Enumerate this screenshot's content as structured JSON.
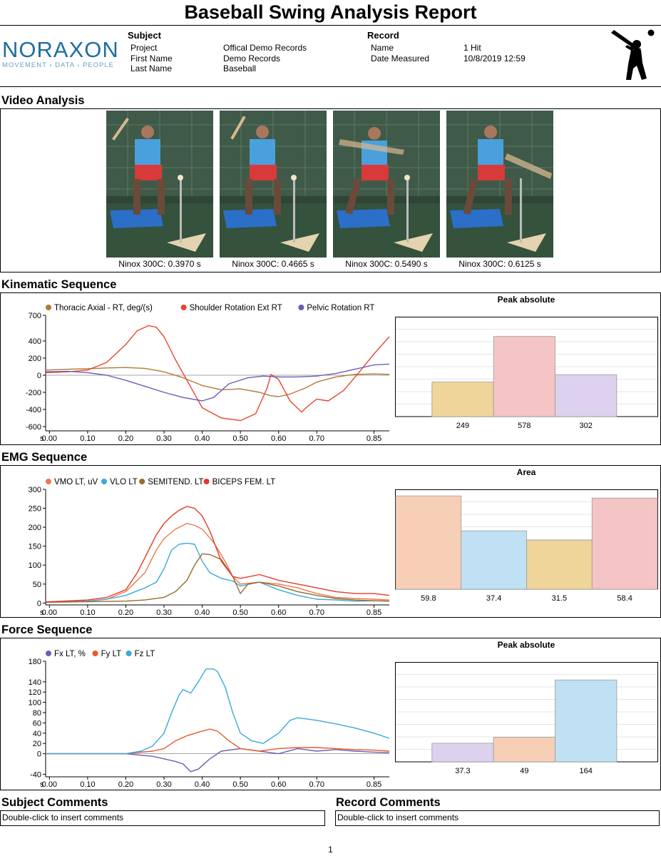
{
  "report_title": "Baseball Swing Analysis Report",
  "logo": {
    "name": "NORAXON",
    "tagline": "MOVEMENT › DATA › PEOPLE"
  },
  "subject": {
    "heading": "Subject",
    "rows": [
      {
        "label": "Project",
        "value": "Offical Demo Records"
      },
      {
        "label": "First Name",
        "value": "Demo Records"
      },
      {
        "label": "Last Name",
        "value": "Baseball"
      }
    ]
  },
  "record": {
    "heading": "Record",
    "rows": [
      {
        "label": "Name",
        "value": "1 Hit"
      },
      {
        "label": "Date Measured",
        "value": "10/8/2019 12:59"
      }
    ]
  },
  "header_icon": "baseball-batter-icon",
  "video": {
    "title": "Video Analysis",
    "frames": [
      {
        "caption": "Ninox 300C: 0.3970 s"
      },
      {
        "caption": "Ninox 300C: 0.4665 s"
      },
      {
        "caption": "Ninox 300C: 0.5490 s"
      },
      {
        "caption": "Ninox 300C: 0.6125 s"
      }
    ]
  },
  "sections": {
    "kinematic": "Kinematic Sequence",
    "emg": "EMG Sequence",
    "force": "Force Sequence"
  },
  "comments": {
    "subject_title": "Subject Comments",
    "subject_text": "Double-click to insert comments",
    "record_title": "Record Comments",
    "record_text": "Double-click to insert comments"
  },
  "page_number": "1",
  "chart_data": [
    {
      "id": "kinematic-line",
      "type": "line",
      "legend": [
        "Thoracic Axial - RT, deg/(s)",
        "Shoulder Rotation Ext RT",
        "Pelvic Rotation RT"
      ],
      "x_unit": "s",
      "xticks": [
        "0.00",
        "0.10",
        "0.20",
        "0.30",
        "0.40",
        "0.50",
        "0.60",
        "0.70",
        "0.85"
      ],
      "xtick_values": [
        0.0,
        0.1,
        0.2,
        0.3,
        0.4,
        0.5,
        0.6,
        0.7,
        0.85
      ],
      "xlim": [
        -0.01,
        0.89
      ],
      "yticks": [
        700,
        400,
        200,
        0,
        -200,
        -400,
        -600
      ],
      "ylim": [
        -650,
        700
      ],
      "zero_line": true,
      "series": [
        {
          "name": "Thoracic Axial - RT, deg/(s)",
          "color": "#b07a35",
          "x": [
            -0.01,
            0.05,
            0.1,
            0.15,
            0.2,
            0.25,
            0.3,
            0.35,
            0.4,
            0.45,
            0.5,
            0.55,
            0.58,
            0.6,
            0.63,
            0.67,
            0.7,
            0.75,
            0.8,
            0.85,
            0.89
          ],
          "y": [
            60,
            70,
            75,
            85,
            90,
            80,
            40,
            -30,
            -120,
            -170,
            -160,
            -200,
            -240,
            -250,
            -220,
            -150,
            -80,
            -20,
            10,
            15,
            10
          ]
        },
        {
          "name": "Shoulder Rotation Ext RT",
          "color": "#e8452c",
          "x": [
            -0.01,
            0.05,
            0.1,
            0.15,
            0.2,
            0.23,
            0.26,
            0.28,
            0.3,
            0.33,
            0.36,
            0.4,
            0.45,
            0.5,
            0.54,
            0.57,
            0.58,
            0.6,
            0.63,
            0.66,
            0.68,
            0.7,
            0.73,
            0.77,
            0.81,
            0.85,
            0.89
          ],
          "y": [
            30,
            40,
            60,
            150,
            360,
            520,
            580,
            560,
            450,
            180,
            -60,
            -380,
            -500,
            -530,
            -450,
            -150,
            10,
            -50,
            -300,
            -430,
            -350,
            -280,
            -300,
            -180,
            30,
            250,
            450
          ]
        },
        {
          "name": "Pelvic Rotation RT",
          "color": "#6c5db8",
          "x": [
            -0.01,
            0.05,
            0.1,
            0.15,
            0.2,
            0.25,
            0.3,
            0.35,
            0.4,
            0.43,
            0.47,
            0.52,
            0.56,
            0.6,
            0.65,
            0.7,
            0.75,
            0.8,
            0.85,
            0.89
          ],
          "y": [
            40,
            45,
            30,
            0,
            -60,
            -130,
            -200,
            -260,
            -300,
            -260,
            -100,
            -30,
            -10,
            -20,
            -20,
            -10,
            20,
            70,
            120,
            130
          ]
        }
      ]
    },
    {
      "id": "kinematic-peak",
      "type": "bar",
      "title": "Peak absolute",
      "categories": [
        "Thoracic Axial - RT, deg/(s)",
        "Shoulder Rotation Ext RT",
        "Pelvic Rotation RT"
      ],
      "labels": [
        "249",
        "578",
        "302"
      ],
      "values": [
        249,
        578,
        302
      ],
      "ylim": [
        0,
        720
      ],
      "colors": [
        "#f0d59a",
        "#f5c4c4",
        "#ddd1ee"
      ],
      "offset_bars": 1
    },
    {
      "id": "emg-line",
      "type": "line",
      "legend": [
        "VMO LT, uV",
        "VLO LT",
        "SEMITEND. LT",
        "BICEPS FEM. LT"
      ],
      "x_unit": "s",
      "xticks": [
        "0.00",
        "0.10",
        "0.20",
        "0.30",
        "0.40",
        "0.50",
        "0.60",
        "0.70",
        "0.85"
      ],
      "xtick_values": [
        0.0,
        0.1,
        0.2,
        0.3,
        0.4,
        0.5,
        0.6,
        0.7,
        0.85
      ],
      "xlim": [
        -0.01,
        0.89
      ],
      "yticks": [
        300,
        250,
        200,
        150,
        100,
        50,
        0
      ],
      "ylim": [
        -5,
        300
      ],
      "zero_line": false,
      "series": [
        {
          "name": "VMO LT, uV",
          "color": "#e87b4c",
          "x": [
            -0.01,
            0.1,
            0.15,
            0.2,
            0.25,
            0.28,
            0.3,
            0.33,
            0.36,
            0.38,
            0.4,
            0.43,
            0.46,
            0.48,
            0.5,
            0.55,
            0.6,
            0.65,
            0.7,
            0.75,
            0.8,
            0.85,
            0.89
          ],
          "y": [
            2,
            5,
            10,
            30,
            80,
            140,
            170,
            195,
            210,
            205,
            195,
            160,
            110,
            70,
            50,
            55,
            50,
            40,
            25,
            15,
            12,
            10,
            8
          ]
        },
        {
          "name": "VLO LT",
          "color": "#3aa8d8",
          "x": [
            -0.01,
            0.1,
            0.15,
            0.2,
            0.25,
            0.28,
            0.3,
            0.32,
            0.34,
            0.36,
            0.38,
            0.4,
            0.42,
            0.45,
            0.48,
            0.5,
            0.55,
            0.6,
            0.65,
            0.7,
            0.75,
            0.8,
            0.85,
            0.89
          ],
          "y": [
            2,
            5,
            10,
            20,
            40,
            55,
            90,
            140,
            155,
            158,
            155,
            110,
            80,
            65,
            58,
            45,
            55,
            35,
            20,
            10,
            8,
            5,
            6,
            5
          ]
        },
        {
          "name": "SEMITEND. LT",
          "color": "#9b6a2c",
          "x": [
            -0.01,
            0.2,
            0.25,
            0.3,
            0.33,
            0.36,
            0.38,
            0.4,
            0.42,
            0.45,
            0.48,
            0.5,
            0.52,
            0.55,
            0.6,
            0.65,
            0.7,
            0.75,
            0.8,
            0.85,
            0.89
          ],
          "y": [
            2,
            5,
            8,
            15,
            30,
            60,
            100,
            130,
            128,
            115,
            70,
            25,
            50,
            55,
            45,
            30,
            20,
            12,
            8,
            6,
            5
          ]
        },
        {
          "name": "BICEPS FEM. LT",
          "color": "#e23a2a",
          "x": [
            -0.01,
            0.1,
            0.15,
            0.2,
            0.23,
            0.26,
            0.28,
            0.3,
            0.32,
            0.34,
            0.36,
            0.38,
            0.4,
            0.42,
            0.45,
            0.48,
            0.5,
            0.55,
            0.6,
            0.65,
            0.7,
            0.75,
            0.8,
            0.85,
            0.89
          ],
          "y": [
            3,
            8,
            15,
            35,
            80,
            140,
            180,
            210,
            230,
            245,
            255,
            250,
            230,
            190,
            110,
            70,
            65,
            75,
            60,
            50,
            40,
            30,
            25,
            25,
            20
          ]
        }
      ]
    },
    {
      "id": "emg-area",
      "type": "bar",
      "title": "Area",
      "categories": [
        "VMO LT, uV",
        "VLO LT",
        "SEMITEND. LT",
        "BICEPS FEM. LT"
      ],
      "labels": [
        "59.8",
        "37.4",
        "31.5",
        "58.4"
      ],
      "values": [
        59.8,
        37.4,
        31.5,
        58.4
      ],
      "ylim": [
        0,
        64
      ],
      "colors": [
        "#f7cfb7",
        "#bfe1f3",
        "#f0d59a",
        "#f5c4c4"
      ],
      "offset_bars": 0
    },
    {
      "id": "force-line",
      "type": "line",
      "legend": [
        "Fx LT, %",
        "Fy LT",
        "Fz LT"
      ],
      "x_unit": "s",
      "xticks": [
        "0.00",
        "0.10",
        "0.20",
        "0.30",
        "0.40",
        "0.50",
        "0.60",
        "0.70",
        "0.85"
      ],
      "xtick_values": [
        0.0,
        0.1,
        0.2,
        0.3,
        0.4,
        0.5,
        0.6,
        0.7,
        0.85
      ],
      "xlim": [
        -0.01,
        0.89
      ],
      "yticks": [
        180,
        140,
        120,
        100,
        80,
        60,
        40,
        20,
        0,
        -40
      ],
      "ylim": [
        -45,
        180
      ],
      "zero_line": true,
      "series": [
        {
          "name": "Fx LT, %",
          "color": "#6c5db8",
          "x": [
            -0.01,
            0.2,
            0.24,
            0.27,
            0.3,
            0.33,
            0.35,
            0.37,
            0.39,
            0.42,
            0.45,
            0.5,
            0.55,
            0.6,
            0.65,
            0.7,
            0.75,
            0.8,
            0.85,
            0.89
          ],
          "y": [
            0,
            0,
            -3,
            -5,
            -10,
            -15,
            -20,
            -35,
            -30,
            -10,
            5,
            10,
            5,
            0,
            10,
            5,
            8,
            5,
            3,
            2
          ]
        },
        {
          "name": "Fy LT",
          "color": "#e8592c",
          "x": [
            -0.01,
            0.2,
            0.24,
            0.27,
            0.3,
            0.33,
            0.36,
            0.39,
            0.42,
            0.44,
            0.47,
            0.5,
            0.55,
            0.6,
            0.65,
            0.7,
            0.75,
            0.8,
            0.85,
            0.89
          ],
          "y": [
            0,
            0,
            3,
            5,
            10,
            25,
            35,
            42,
            48,
            44,
            25,
            10,
            5,
            10,
            12,
            12,
            10,
            8,
            7,
            5
          ]
        },
        {
          "name": "Fz LT",
          "color": "#3aa8d8",
          "x": [
            -0.01,
            0.2,
            0.24,
            0.27,
            0.3,
            0.32,
            0.34,
            0.35,
            0.37,
            0.39,
            0.41,
            0.43,
            0.44,
            0.46,
            0.48,
            0.5,
            0.53,
            0.56,
            0.6,
            0.63,
            0.65,
            0.7,
            0.75,
            0.8,
            0.85,
            0.89
          ],
          "y": [
            0,
            0,
            5,
            15,
            40,
            80,
            115,
            125,
            118,
            140,
            165,
            165,
            160,
            130,
            80,
            40,
            25,
            20,
            40,
            65,
            70,
            65,
            58,
            50,
            40,
            30
          ]
        }
      ]
    },
    {
      "id": "force-peak",
      "type": "bar",
      "title": "Peak absolute",
      "categories": [
        "Fx LT, %",
        "Fy LT",
        "Fz LT"
      ],
      "labels": [
        "37.3",
        "49",
        "164"
      ],
      "values": [
        37.3,
        49,
        164
      ],
      "ylim": [
        0,
        200
      ],
      "colors": [
        "#ddd1ee",
        "#f7cfb7",
        "#bfe1f3"
      ],
      "offset_bars": 1
    }
  ]
}
